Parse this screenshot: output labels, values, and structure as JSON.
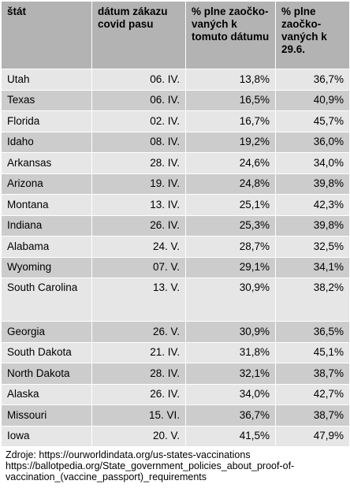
{
  "table": {
    "headers": [
      "štát",
      "dátum zákazu covid pasu",
      "% plne zaočko-vaných k tomuto dátumu",
      "% plne zaočko-vaných k 29.6."
    ],
    "rows": [
      [
        "Utah",
        "06. IV.",
        "13,8%",
        "36,7%"
      ],
      [
        "Texas",
        "06. IV.",
        "16,5%",
        "40,9%"
      ],
      [
        "Florida",
        "02. IV.",
        "16,7%",
        "45,7%"
      ],
      [
        "Idaho",
        "08. IV.",
        "19,2%",
        "36,0%"
      ],
      [
        "Arkansas",
        "28. IV.",
        "24,6%",
        "34,0%"
      ],
      [
        "Arizona",
        "19. IV.",
        "24,8%",
        "39,8%"
      ],
      [
        "Montana",
        "13. IV.",
        "25,1%",
        "42,3%"
      ],
      [
        "Indiana",
        "26. IV.",
        "25,3%",
        "39,8%"
      ],
      [
        "Alabama",
        "24. V.",
        "28,7%",
        "32,5%"
      ],
      [
        "Wyoming",
        "07. V.",
        "29,1%",
        "34,1%"
      ],
      [
        "South Carolina",
        "13. V.",
        "30,9%",
        "38,2%"
      ],
      [
        "Georgia",
        "26. V.",
        "30,9%",
        "36,5%"
      ],
      [
        "South Dakota",
        "21. IV.",
        "31,8%",
        "45,1%"
      ],
      [
        "North Dakota",
        "28. IV.",
        "32,1%",
        "38,7%"
      ],
      [
        "Alaska",
        "26. IV.",
        "34,0%",
        "42,7%"
      ],
      [
        "Missouri",
        "15. VI.",
        "36,7%",
        "38,7%"
      ],
      [
        "Iowa",
        "20. V.",
        "41,5%",
        "47,9%"
      ]
    ]
  },
  "source": {
    "line1": "Zdroje: https://ourworldindata.org/us-states-vaccinations",
    "line2": "https://ballotpedia.org/State_government_policies_about_proof-of-",
    "line3": "vaccination_(vaccine_passport)_requirements"
  }
}
